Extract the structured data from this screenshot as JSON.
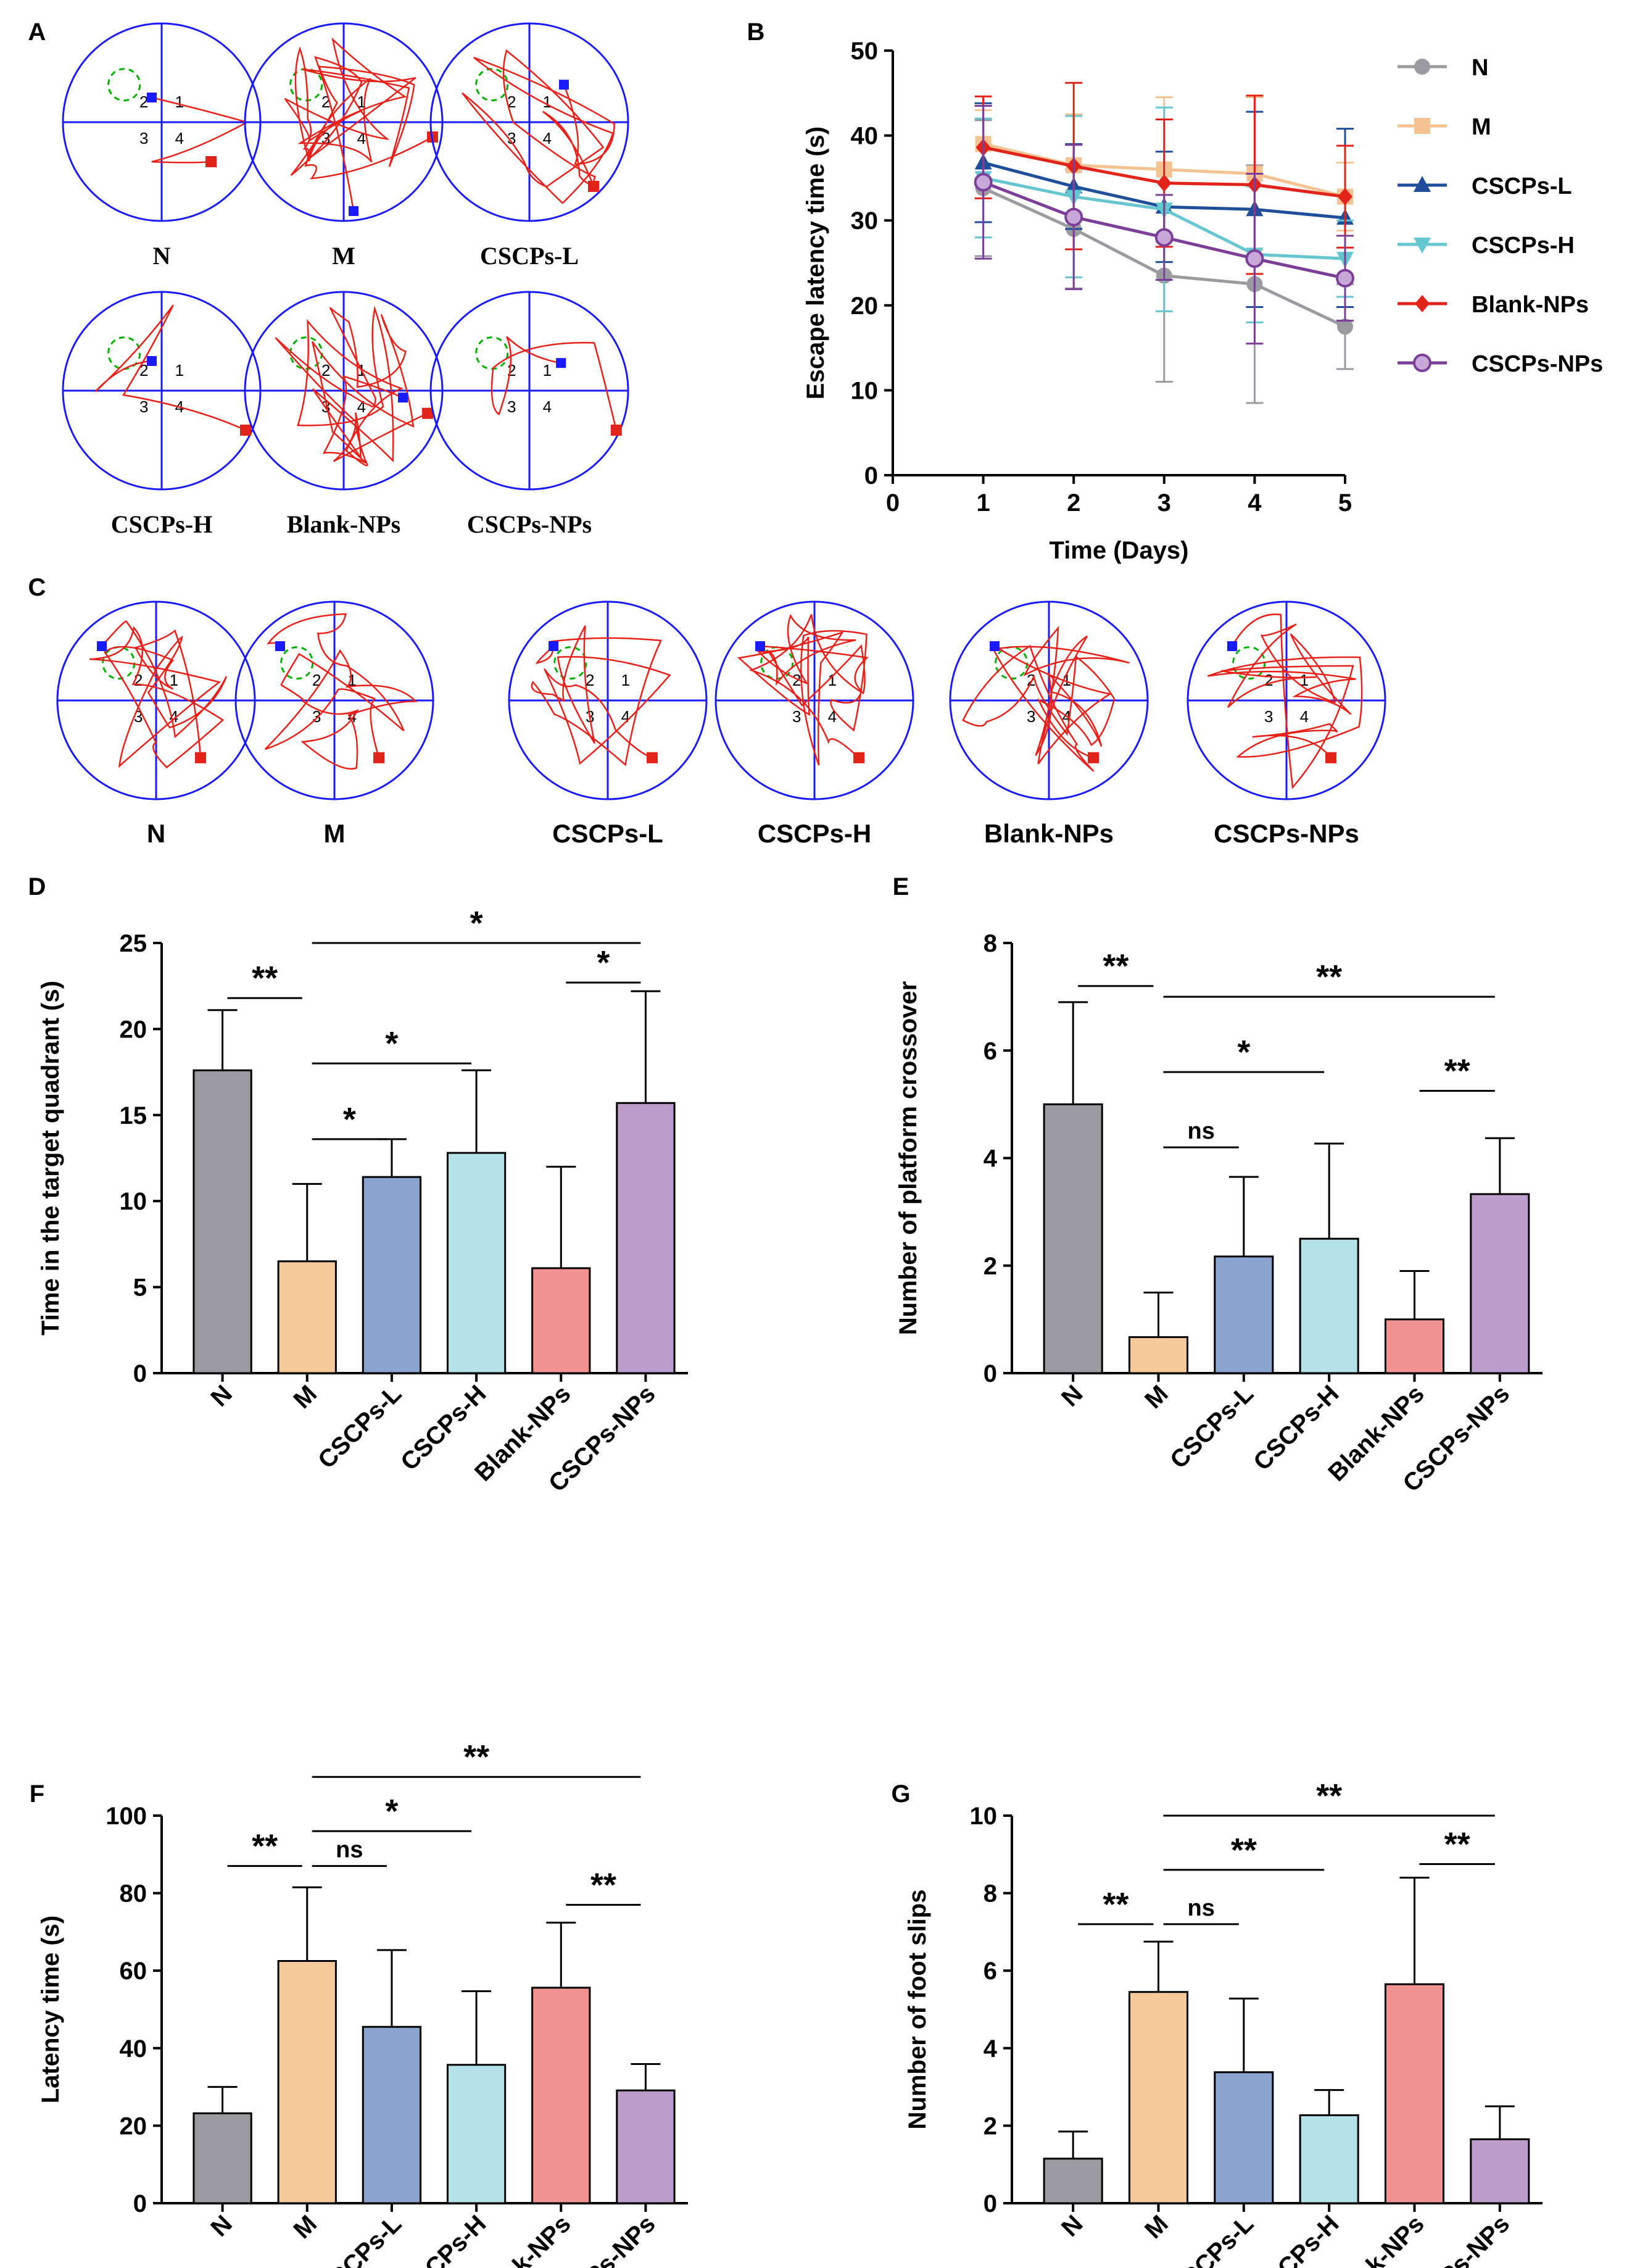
{
  "panel_a": {
    "letter": "A",
    "labels": [
      "N",
      "M",
      "CSCPs-L",
      "CSCPs-H",
      "Blank-NPs",
      "CSCPs-NPs"
    ],
    "quadrants": [
      "1",
      "2",
      "3",
      "4"
    ]
  },
  "panel_c": {
    "letter": "C",
    "labels": [
      "N",
      "M",
      "CSCPs-L",
      "CSCPs-H",
      "Blank-NPs",
      "CSCPs-NPs"
    ]
  },
  "colors": {
    "N": "#9a9aa0",
    "M": "#f5c999",
    "CSCPs-L": "#8aa3cf",
    "CSCPs-H": "#b5e2e9",
    "Blank-NPs": "#f29290",
    "CSCPs-NPs": "#bc9ccb",
    "line_N": "#9a9aa0",
    "line_M": "#f5c291",
    "line_CSCPs-L": "#1f4e9a",
    "line_CSCPs-H": "#66c6cf",
    "line_Blank-NPs": "#e2231a",
    "line_CSCPs-NPs": "#7b3f98",
    "track": "#e8201a",
    "circle": "#1a1aff",
    "platform": "#00b000"
  },
  "chart_data": [
    {
      "panel": "B",
      "type": "line",
      "title": "",
      "xlabel": "Time (Days)",
      "ylabel": "Escape latency time (s)",
      "x": [
        1,
        2,
        3,
        4,
        5
      ],
      "xlim": [
        0,
        5
      ],
      "ylim": [
        0,
        50
      ],
      "xticks": [
        "0",
        "1",
        "2",
        "3",
        "4",
        "5"
      ],
      "yticks": [
        "0",
        "10",
        "20",
        "30",
        "40",
        "50"
      ],
      "series": [
        {
          "name": "N",
          "marker": "circle",
          "values": [
            33.8,
            29.0,
            23.5,
            22.5,
            17.5
          ],
          "errors": [
            8.0,
            7.0,
            12.5,
            14.0,
            5.0
          ]
        },
        {
          "name": "M",
          "marker": "square",
          "values": [
            39.0,
            36.5,
            36.0,
            35.5,
            32.8
          ],
          "errors": [
            4.0,
            6.0,
            8.5,
            9.0,
            4.0
          ]
        },
        {
          "name": "CSCPs-L",
          "marker": "triangle",
          "values": [
            36.8,
            34.0,
            31.6,
            31.3,
            30.3
          ],
          "errors": [
            7.0,
            5.0,
            6.5,
            11.5,
            10.5
          ]
        },
        {
          "name": "CSCPs-H",
          "marker": "triangle-down",
          "values": [
            35.0,
            32.8,
            31.3,
            26.0,
            25.5
          ],
          "errors": [
            7.0,
            9.5,
            12.0,
            8.0,
            4.5
          ]
        },
        {
          "name": "Blank-NPs",
          "marker": "diamond",
          "values": [
            38.6,
            36.4,
            34.4,
            34.2,
            32.8
          ],
          "errors": [
            6.0,
            9.8,
            7.5,
            10.5,
            6.0
          ]
        },
        {
          "name": "CSCPs-NPs",
          "marker": "circle-open",
          "values": [
            34.5,
            30.4,
            28.0,
            25.5,
            23.2
          ],
          "errors": [
            9.0,
            8.5,
            5.0,
            10.0,
            5.0
          ]
        }
      ],
      "legend": "right"
    },
    {
      "panel": "D",
      "type": "bar",
      "ylabel": "Time  in the target quadrant (s)",
      "categories": [
        "N",
        "M",
        "CSCPs-L",
        "CSCPs-H",
        "Blank-NPs",
        "CSCPs-NPs"
      ],
      "values": [
        17.6,
        6.5,
        11.4,
        12.8,
        6.1,
        15.7
      ],
      "errors": [
        3.5,
        4.5,
        2.2,
        4.8,
        5.9,
        6.5
      ],
      "ylim": [
        0,
        25
      ],
      "yticks": [
        "0",
        "5",
        "10",
        "15",
        "20",
        "25"
      ],
      "significance": [
        {
          "from": 0,
          "to": 1,
          "label": "**",
          "level": 21.8
        },
        {
          "from": 1,
          "to": 5,
          "label": "*",
          "level": 25.0
        },
        {
          "from": 1,
          "to": 3,
          "label": "*",
          "level": 18.0
        },
        {
          "from": 1,
          "to": 2,
          "label": "*",
          "level": 13.6
        },
        {
          "from": 4,
          "to": 5,
          "label": "*",
          "level": 22.7
        }
      ]
    },
    {
      "panel": "E",
      "type": "bar",
      "ylabel": "Number of platform crossover",
      "categories": [
        "N",
        "M",
        "CSCPs-L",
        "CSCPs-H",
        "Blank-NPs",
        "CSCPs-NPs"
      ],
      "values": [
        5.0,
        0.67,
        2.17,
        2.5,
        1.0,
        3.33
      ],
      "errors": [
        1.9,
        0.83,
        1.48,
        1.77,
        0.9,
        1.04
      ],
      "ylim": [
        0,
        8
      ],
      "yticks": [
        "0",
        "2",
        "4",
        "6",
        "8"
      ],
      "significance": [
        {
          "from": 0,
          "to": 1,
          "label": "**",
          "level": 7.2
        },
        {
          "from": 1,
          "to": 5,
          "label": "**",
          "level": 7.0
        },
        {
          "from": 1,
          "to": 3,
          "label": "*",
          "level": 5.6
        },
        {
          "from": 1,
          "to": 2,
          "label": "ns",
          "level": 4.2
        },
        {
          "from": 4,
          "to": 5,
          "label": "**",
          "level": 5.25
        }
      ]
    },
    {
      "panel": "F",
      "type": "bar",
      "ylabel": "Latency time (s)",
      "categories": [
        "N",
        "M",
        "CSCPs-L",
        "CSCPs-H",
        "Blank-NPs",
        "CSCPs-NPs"
      ],
      "values": [
        23.2,
        62.5,
        45.5,
        35.7,
        55.6,
        29.1
      ],
      "errors": [
        6.8,
        19.0,
        19.8,
        19.0,
        16.8,
        6.8
      ],
      "ylim": [
        0,
        100
      ],
      "yticks": [
        "0",
        "20",
        "40",
        "60",
        "80",
        "100"
      ],
      "significance": [
        {
          "from": 0,
          "to": 1,
          "label": "**",
          "level": 87
        },
        {
          "from": 1,
          "to": 5,
          "label": "**",
          "level": 110
        },
        {
          "from": 1,
          "to": 3,
          "label": "*",
          "level": 96
        },
        {
          "from": 1,
          "to": 2,
          "label": "ns",
          "level": 87
        },
        {
          "from": 4,
          "to": 5,
          "label": "**",
          "level": 77
        }
      ]
    },
    {
      "panel": "G",
      "type": "bar",
      "ylabel": "Number of foot slips",
      "categories": [
        "N",
        "M",
        "CSCPs-L",
        "CSCPs-H",
        "Blank-NPs",
        "CSCPs-NPs"
      ],
      "values": [
        1.15,
        5.45,
        3.38,
        2.27,
        5.65,
        1.65
      ],
      "errors": [
        0.7,
        1.3,
        1.9,
        0.65,
        2.75,
        0.85
      ],
      "ylim": [
        0,
        10
      ],
      "yticks": [
        "0",
        "2",
        "4",
        "6",
        "8",
        "10"
      ],
      "significance": [
        {
          "from": 0,
          "to": 1,
          "label": "**",
          "level": 7.2
        },
        {
          "from": 1,
          "to": 5,
          "label": "**",
          "level": 10.0
        },
        {
          "from": 1,
          "to": 3,
          "label": "**",
          "level": 8.6
        },
        {
          "from": 1,
          "to": 2,
          "label": "ns",
          "level": 7.2
        },
        {
          "from": 4,
          "to": 5,
          "label": "**",
          "level": 8.75
        }
      ]
    }
  ]
}
